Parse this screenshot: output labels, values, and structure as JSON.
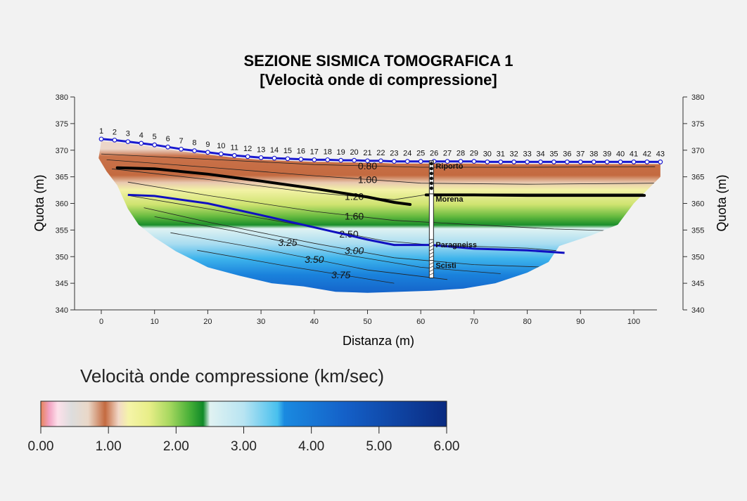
{
  "chart_data": {
    "type": "heatmap",
    "title": "SEZIONE SISMICA TOMOGRAFICA 1",
    "subtitle": "[Velocità onde di compressione]",
    "xlabel": "Distanza (m)",
    "ylabel": "Quota (m)",
    "xlim": [
      0,
      104
    ],
    "ylim": [
      340,
      380
    ],
    "x_ticks": [
      "0",
      "10",
      "20",
      "30",
      "40",
      "50",
      "60",
      "70",
      "80",
      "90",
      "100"
    ],
    "y_ticks": [
      "380",
      "375",
      "370",
      "365",
      "360",
      "355",
      "350",
      "345",
      "340"
    ],
    "grid": false,
    "geophones": {
      "labels": [
        "1",
        "2",
        "3",
        "4",
        "5",
        "6",
        "7",
        "8",
        "9",
        "10",
        "11",
        "12",
        "13",
        "14",
        "15",
        "16",
        "17",
        "18",
        "19",
        "20",
        "21",
        "22",
        "23",
        "24",
        "25",
        "26",
        "27",
        "28",
        "29",
        "30",
        "31",
        "32",
        "33",
        "34",
        "35",
        "36",
        "37",
        "38",
        "39",
        "40",
        "41",
        "42",
        "43"
      ],
      "x": [
        0,
        2.5,
        5,
        7.5,
        10,
        12.5,
        15,
        17.5,
        20,
        22.5,
        25,
        27.5,
        30,
        32.5,
        35,
        37.5,
        40,
        42.5,
        45,
        47.5,
        50,
        52.5,
        55,
        57.5,
        60,
        62.5,
        65,
        67.5,
        70,
        72.5,
        75,
        77.5,
        80,
        82.5,
        85,
        87.5,
        90,
        92.5,
        95,
        97.5,
        100,
        102.5,
        105
      ],
      "y": [
        372.1,
        371.9,
        371.6,
        371.3,
        371.0,
        370.6,
        370.2,
        369.9,
        369.6,
        369.3,
        369.0,
        368.8,
        368.6,
        368.5,
        368.4,
        368.3,
        368.2,
        368.2,
        368.1,
        368.1,
        368.0,
        368.0,
        367.9,
        367.9,
        367.9,
        367.9,
        367.9,
        367.9,
        367.9,
        367.8,
        367.8,
        367.8,
        367.8,
        367.8,
        367.8,
        367.8,
        367.8,
        367.8,
        367.8,
        367.8,
        367.8,
        367.8,
        367.8
      ]
    },
    "contours": [
      {
        "label": "0.80",
        "x": [
          0,
          20,
          40,
          60,
          80,
          104
        ],
        "y": [
          369.3,
          368.3,
          367.3,
          366.8,
          366.8,
          366.9
        ]
      },
      {
        "label": "1.00",
        "x": [
          1,
          20,
          40,
          60,
          80,
          104
        ],
        "y": [
          368.2,
          366.8,
          365.2,
          363.8,
          363.6,
          363.8
        ]
      },
      {
        "label": "1.20",
        "x": [
          2,
          20,
          40,
          55,
          62,
          80,
          102
        ],
        "y": [
          366.5,
          364.5,
          362.0,
          360.7,
          361.8,
          361.8,
          361.8
        ]
      },
      {
        "label": "1.60",
        "x": [
          5,
          20,
          40,
          55,
          70,
          85,
          98
        ],
        "y": [
          364.0,
          361.5,
          358.5,
          356.8,
          356.0,
          355.2,
          354.8
        ]
      },
      {
        "label": "2.50",
        "x": [
          5,
          20,
          40,
          53,
          62,
          80,
          87
        ],
        "y": [
          361.5,
          359.0,
          355.5,
          353.0,
          352.2,
          351.6,
          351.0
        ]
      },
      {
        "label": "3.00",
        "x": [
          8,
          20,
          40,
          55,
          70,
          84
        ],
        "y": [
          359.2,
          356.5,
          352.5,
          349.8,
          348.5,
          348.0
        ]
      },
      {
        "label": "3.25",
        "x": [
          10,
          25,
          45,
          60,
          75
        ],
        "y": [
          357.5,
          354.8,
          350.5,
          348.0,
          346.8
        ]
      },
      {
        "label": "3.50",
        "x": [
          13,
          30,
          50,
          65
        ],
        "y": [
          354.5,
          351.5,
          347.5,
          345.7
        ]
      },
      {
        "label": "3.75",
        "x": [
          18,
          35,
          55
        ],
        "y": [
          351.2,
          348.2,
          345.0
        ]
      }
    ],
    "interfaces": [
      {
        "x": [
          3,
          10,
          20,
          30,
          40,
          50,
          55,
          58
        ],
        "y": [
          366.7,
          366.5,
          365.5,
          364.2,
          362.8,
          361.2,
          360.2,
          359.8
        ]
      },
      {
        "x": [
          61,
          70,
          80,
          90,
          102
        ],
        "y": [
          361.6,
          361.6,
          361.5,
          361.5,
          361.5
        ]
      }
    ],
    "refractor": {
      "x": [
        5,
        10,
        20,
        30,
        40,
        50,
        55,
        62,
        70,
        80,
        87
      ],
      "y": [
        361.6,
        361.4,
        360.0,
        357.8,
        355.5,
        353.2,
        352.2,
        352.2,
        351.5,
        351.2,
        350.7
      ]
    },
    "borehole": {
      "x": 62,
      "top": 368.0,
      "bottom": 346.0,
      "layers": [
        {
          "name": "Riporto",
          "top": 368.0,
          "bottom": 361.8
        },
        {
          "name": "Morena",
          "top": 361.8,
          "bottom": 353.2
        },
        {
          "name": "Paragneiss",
          "top": 353.2,
          "bottom": 349.3
        },
        {
          "name": "Scisti",
          "top": 349.3,
          "bottom": 346.0
        }
      ]
    },
    "colorbar": {
      "title": "Velocità onde compressione (km/sec)",
      "min": 0,
      "max": 6,
      "ticks": [
        "0.00",
        "1.00",
        "2.00",
        "3.00",
        "4.00",
        "5.00",
        "6.00"
      ],
      "stops": [
        {
          "v": 0.0,
          "color": "#e8845a"
        },
        {
          "v": 0.12,
          "color": "#f2a0c0"
        },
        {
          "v": 0.25,
          "color": "#fde0ea"
        },
        {
          "v": 0.45,
          "color": "#dddddd"
        },
        {
          "v": 0.7,
          "color": "#ead8c8"
        },
        {
          "v": 0.95,
          "color": "#c46a40"
        },
        {
          "v": 1.15,
          "color": "#f2d8c8"
        },
        {
          "v": 1.3,
          "color": "#f5f4a8"
        },
        {
          "v": 1.6,
          "color": "#e8ee88"
        },
        {
          "v": 1.9,
          "color": "#a8d860"
        },
        {
          "v": 2.2,
          "color": "#48b038"
        },
        {
          "v": 2.4,
          "color": "#0f8a28"
        },
        {
          "v": 2.5,
          "color": "#e0f2f2"
        },
        {
          "v": 3.0,
          "color": "#b8e4f2"
        },
        {
          "v": 3.5,
          "color": "#48c0ee"
        },
        {
          "v": 3.6,
          "color": "#1a8ae0"
        },
        {
          "v": 4.5,
          "color": "#1460c8"
        },
        {
          "v": 6.0,
          "color": "#0a2a80"
        }
      ]
    }
  }
}
